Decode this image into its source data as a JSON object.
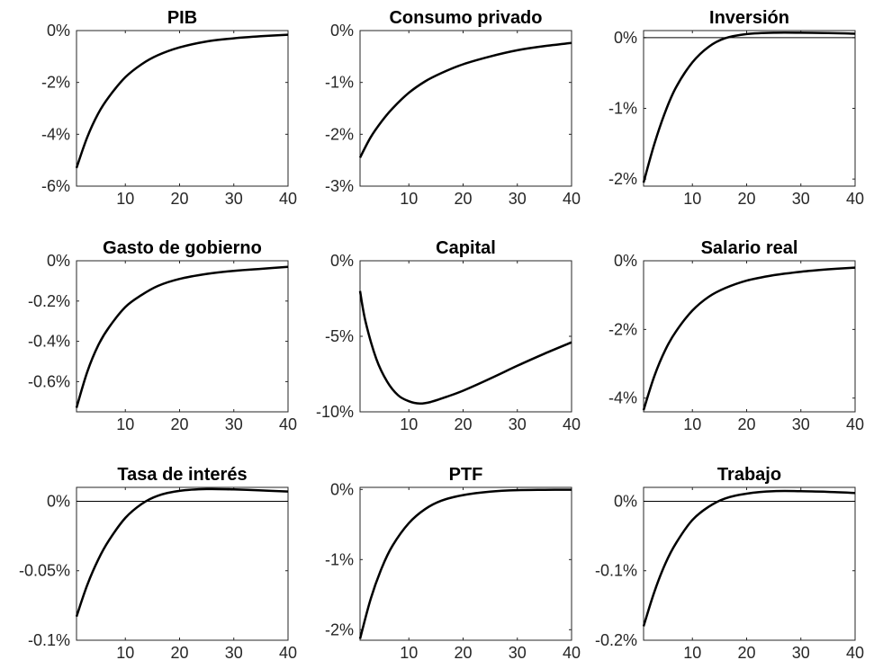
{
  "chart_data": [
    {
      "type": "line",
      "title": "PIB",
      "xlim": [
        1,
        40
      ],
      "ylim": [
        -6,
        0
      ],
      "xticks": [
        10,
        20,
        30,
        40
      ],
      "xtick_labels": [
        "10",
        "20",
        "30",
        "40"
      ],
      "yticks": [
        -6,
        -4,
        -2,
        0
      ],
      "ytick_labels": [
        "-6%",
        "-4%",
        "-2%",
        "0%"
      ],
      "zero_line": false,
      "x": [
        1,
        3,
        5,
        7,
        10,
        13,
        16,
        20,
        25,
        30,
        35,
        40
      ],
      "y": [
        -5.3,
        -4.1,
        -3.2,
        -2.55,
        -1.8,
        -1.3,
        -0.95,
        -0.65,
        -0.42,
        -0.3,
        -0.22,
        -0.16
      ]
    },
    {
      "type": "line",
      "title": "Consumo privado",
      "xlim": [
        1,
        40
      ],
      "ylim": [
        -3,
        0
      ],
      "xticks": [
        10,
        20,
        30,
        40
      ],
      "xtick_labels": [
        "10",
        "20",
        "30",
        "40"
      ],
      "yticks": [
        -3,
        -2,
        -1,
        0
      ],
      "ytick_labels": [
        "-3%",
        "-2%",
        "-1%",
        "0%"
      ],
      "zero_line": false,
      "x": [
        1,
        3,
        5,
        7,
        10,
        13,
        16,
        20,
        25,
        30,
        35,
        40
      ],
      "y": [
        -2.45,
        -2.05,
        -1.75,
        -1.5,
        -1.2,
        -0.98,
        -0.82,
        -0.65,
        -0.5,
        -0.38,
        -0.3,
        -0.24
      ]
    },
    {
      "type": "line",
      "title": "Inversión",
      "xlim": [
        1,
        40
      ],
      "ylim": [
        -2.1,
        0.1
      ],
      "xticks": [
        10,
        20,
        30,
        40
      ],
      "xtick_labels": [
        "10",
        "20",
        "30",
        "40"
      ],
      "yticks": [
        -2,
        -1,
        0
      ],
      "ytick_labels": [
        "-2%",
        "-1%",
        "0%"
      ],
      "zero_line": true,
      "x": [
        1,
        3,
        5,
        7,
        10,
        13,
        16,
        20,
        25,
        30,
        35,
        40
      ],
      "y": [
        -2.05,
        -1.5,
        -1.05,
        -0.7,
        -0.35,
        -0.13,
        -0.01,
        0.05,
        0.07,
        0.07,
        0.065,
        0.055
      ]
    },
    {
      "type": "line",
      "title": "Gasto de gobierno",
      "xlim": [
        1,
        40
      ],
      "ylim": [
        -0.75,
        0
      ],
      "xticks": [
        10,
        20,
        30,
        40
      ],
      "xtick_labels": [
        "10",
        "20",
        "30",
        "40"
      ],
      "yticks": [
        -0.6,
        -0.4,
        -0.2,
        0
      ],
      "ytick_labels": [
        "-0.6%",
        "-0.4%",
        "-0.2%",
        "0%"
      ],
      "zero_line": false,
      "x": [
        1,
        3,
        5,
        7,
        10,
        13,
        16,
        20,
        25,
        30,
        35,
        40
      ],
      "y": [
        -0.73,
        -0.55,
        -0.42,
        -0.33,
        -0.23,
        -0.17,
        -0.125,
        -0.09,
        -0.065,
        -0.05,
        -0.04,
        -0.03
      ]
    },
    {
      "type": "line",
      "title": "Capital",
      "xlim": [
        1,
        40
      ],
      "ylim": [
        -10,
        0
      ],
      "xticks": [
        10,
        20,
        30,
        40
      ],
      "xtick_labels": [
        "10",
        "20",
        "30",
        "40"
      ],
      "yticks": [
        -10,
        -5,
        0
      ],
      "ytick_labels": [
        "-10%",
        "-5%",
        "0%"
      ],
      "zero_line": false,
      "x": [
        1,
        2,
        4,
        6,
        8,
        10,
        12,
        14,
        17,
        20,
        25,
        30,
        35,
        40
      ],
      "y": [
        -2.0,
        -4.0,
        -6.5,
        -8.0,
        -8.9,
        -9.3,
        -9.45,
        -9.35,
        -9.0,
        -8.6,
        -7.8,
        -6.95,
        -6.15,
        -5.4
      ]
    },
    {
      "type": "line",
      "title": "Salario real",
      "xlim": [
        1,
        40
      ],
      "ylim": [
        -4.4,
        0
      ],
      "xticks": [
        10,
        20,
        30,
        40
      ],
      "xtick_labels": [
        "10",
        "20",
        "30",
        "40"
      ],
      "yticks": [
        -4,
        -2,
        0
      ],
      "ytick_labels": [
        "-4%",
        "-2%",
        "0%"
      ],
      "zero_line": false,
      "x": [
        1,
        3,
        5,
        7,
        10,
        13,
        16,
        20,
        25,
        30,
        35,
        40
      ],
      "y": [
        -4.35,
        -3.35,
        -2.6,
        -2.05,
        -1.45,
        -1.05,
        -0.8,
        -0.58,
        -0.42,
        -0.32,
        -0.25,
        -0.2
      ]
    },
    {
      "type": "line",
      "title": "Tasa de interés",
      "xlim": [
        1,
        40
      ],
      "ylim": [
        -0.1,
        0.01
      ],
      "xticks": [
        10,
        20,
        30,
        40
      ],
      "xtick_labels": [
        "10",
        "20",
        "30",
        "40"
      ],
      "yticks": [
        -0.1,
        -0.05,
        0
      ],
      "ytick_labels": [
        "-0.1%",
        "-0.05%",
        "0%"
      ],
      "zero_line": true,
      "x": [
        1,
        3,
        5,
        7,
        10,
        13,
        16,
        20,
        25,
        30,
        35,
        40
      ],
      "y": [
        -0.083,
        -0.06,
        -0.042,
        -0.028,
        -0.012,
        -0.002,
        0.004,
        0.0075,
        0.0088,
        0.0085,
        0.0078,
        0.007
      ]
    },
    {
      "type": "line",
      "title": "PTF",
      "xlim": [
        1,
        40
      ],
      "ylim": [
        -2.15,
        0.03
      ],
      "xticks": [
        10,
        20,
        30,
        40
      ],
      "xtick_labels": [
        "10",
        "20",
        "30",
        "40"
      ],
      "yticks": [
        -2,
        -1,
        0
      ],
      "ytick_labels": [
        "-2%",
        "-1%",
        "0%"
      ],
      "zero_line": false,
      "x": [
        1,
        3,
        5,
        7,
        10,
        13,
        16,
        20,
        25,
        30,
        35,
        40
      ],
      "y": [
        -2.13,
        -1.55,
        -1.12,
        -0.8,
        -0.48,
        -0.28,
        -0.16,
        -0.08,
        -0.03,
        -0.01,
        -0.005,
        -0.003
      ]
    },
    {
      "type": "line",
      "title": "Trabajo",
      "xlim": [
        1,
        40
      ],
      "ylim": [
        -0.2,
        0.02
      ],
      "xticks": [
        10,
        20,
        30,
        40
      ],
      "xtick_labels": [
        "10",
        "20",
        "30",
        "40"
      ],
      "yticks": [
        -0.2,
        -0.1,
        0
      ],
      "ytick_labels": [
        "-0.2%",
        "-0.1%",
        "0%"
      ],
      "zero_line": true,
      "x": [
        1,
        3,
        5,
        7,
        10,
        13,
        16,
        20,
        25,
        30,
        35,
        40
      ],
      "y": [
        -0.18,
        -0.13,
        -0.09,
        -0.06,
        -0.027,
        -0.008,
        0.004,
        0.011,
        0.0145,
        0.0145,
        0.0135,
        0.012
      ]
    }
  ]
}
